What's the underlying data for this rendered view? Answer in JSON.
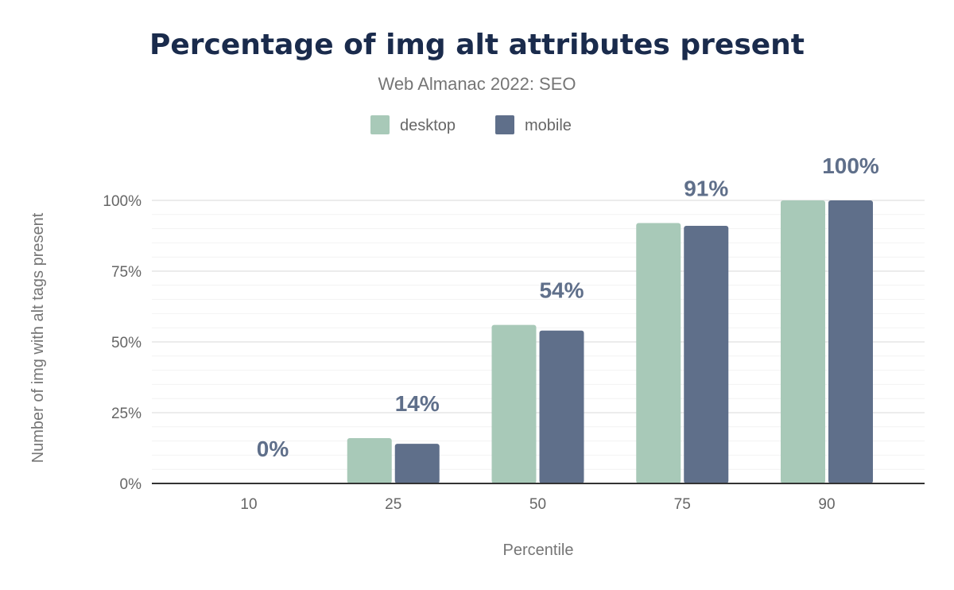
{
  "chart_data": {
    "type": "bar",
    "title": "Percentage of img alt attributes present",
    "subtitle": "Web Almanac 2022: SEO",
    "xlabel": "Percentile",
    "ylabel": "Number of img with alt tags present",
    "categories": [
      "10",
      "25",
      "50",
      "75",
      "90"
    ],
    "series": [
      {
        "name": "desktop",
        "color": "#a8c9b8",
        "values": [
          0,
          16,
          56,
          92,
          100
        ]
      },
      {
        "name": "mobile",
        "color": "#5f6f8a",
        "values": [
          0,
          14,
          54,
          91,
          100
        ]
      }
    ],
    "data_labels": [
      "0%",
      "14%",
      "54%",
      "91%",
      "100%"
    ],
    "yticks": [
      "0%",
      "25%",
      "50%",
      "75%",
      "100%"
    ],
    "ylim": [
      0,
      100
    ],
    "grid": true,
    "legend": "top-center"
  }
}
